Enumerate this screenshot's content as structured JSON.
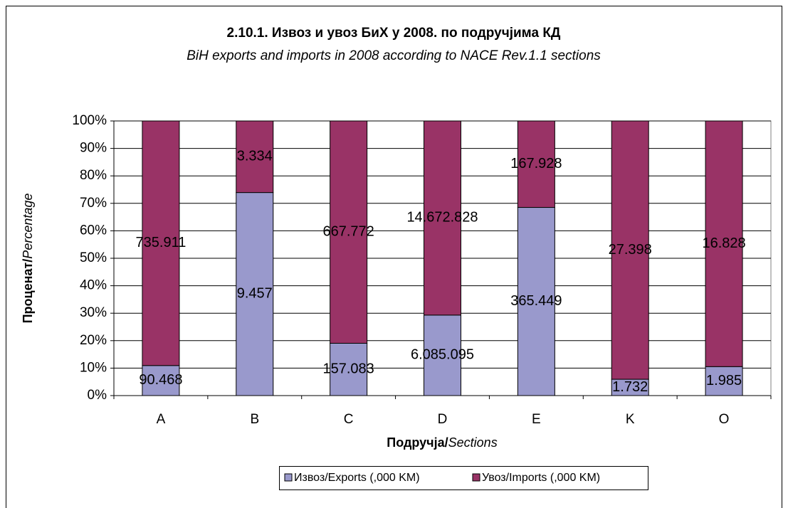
{
  "chart_data": {
    "type": "bar",
    "stacking": "percent",
    "title": "2.10.1. Извоз и увоз БиХ у 2008. по подручјима КД",
    "subtitle": "BiH exports and imports in 2008 according to NACE Rev.1.1 sections",
    "ylabel": {
      "bold": "Проценат/",
      "italic": "Percentage"
    },
    "xlabel": {
      "bold": "Подручја/",
      "italic": "Sections"
    },
    "categories": [
      "A",
      "B",
      "C",
      "D",
      "E",
      "K",
      "O"
    ],
    "series": [
      {
        "name": "Извоз/Exports (,000 KM)",
        "color": "#9999cc",
        "values": [
          90468,
          9457,
          157083,
          6085095,
          365449,
          1732,
          1985
        ],
        "value_labels": [
          "90.468",
          "9.457",
          "157.083",
          "6.085.095",
          "365.449",
          "1.732",
          "1.985"
        ]
      },
      {
        "name": "Увоз/Imports (,000 KM)",
        "color": "#993366",
        "values": [
          735911,
          3334,
          667772,
          14672828,
          167928,
          27398,
          16828
        ],
        "value_labels": [
          "735.911",
          "3.334",
          "667.772",
          "14.672.828",
          "167.928",
          "27.398",
          "16.828"
        ]
      }
    ],
    "ylim": [
      0,
      100
    ],
    "yticks": [
      {
        "value": 0,
        "label": "0%"
      },
      {
        "value": 10,
        "label": "10%"
      },
      {
        "value": 20,
        "label": "20%"
      },
      {
        "value": 30,
        "label": "30%"
      },
      {
        "value": 40,
        "label": "40%"
      },
      {
        "value": 50,
        "label": "50%"
      },
      {
        "value": 60,
        "label": "60%"
      },
      {
        "value": 70,
        "label": "70%"
      },
      {
        "value": 80,
        "label": "80%"
      },
      {
        "value": 90,
        "label": "90%"
      },
      {
        "value": 100,
        "label": "100%"
      }
    ],
    "grid": true,
    "legend": "bottom"
  }
}
